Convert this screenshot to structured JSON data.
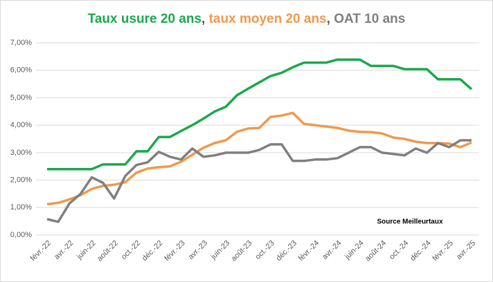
{
  "chart_data": {
    "type": "line",
    "series": [
      {
        "name": "Taux usure 20 ans",
        "color": "#1aa84b",
        "values": [
          2.4,
          2.4,
          2.4,
          2.4,
          2.4,
          2.57,
          2.57,
          2.57,
          3.05,
          3.05,
          3.57,
          3.57,
          3.79,
          4.0,
          4.24,
          4.5,
          4.67,
          5.09,
          5.33,
          5.56,
          5.79,
          5.91,
          6.11,
          6.28,
          6.28,
          6.28,
          6.39,
          6.39,
          6.39,
          6.16,
          6.16,
          6.16,
          6.04,
          6.04,
          6.04,
          5.67,
          5.67,
          5.67,
          5.31
        ]
      },
      {
        "name": "taux moyen 20 ans",
        "color": "#f0994a",
        "values": [
          1.12,
          1.17,
          1.3,
          1.45,
          1.68,
          1.79,
          1.83,
          1.92,
          2.27,
          2.42,
          2.47,
          2.5,
          2.67,
          2.92,
          3.18,
          3.35,
          3.45,
          3.76,
          3.88,
          3.9,
          4.3,
          4.35,
          4.45,
          4.05,
          4.0,
          3.95,
          3.9,
          3.8,
          3.76,
          3.75,
          3.7,
          3.55,
          3.5,
          3.4,
          3.35,
          3.35,
          3.33,
          3.2,
          3.37
        ]
      },
      {
        "name": "OAT 10 ans",
        "color": "#7f7f7f",
        "values": [
          0.58,
          0.48,
          1.15,
          1.5,
          2.1,
          1.9,
          1.33,
          2.15,
          2.55,
          2.65,
          3.03,
          2.85,
          2.75,
          3.15,
          2.85,
          2.9,
          3.0,
          3.0,
          3.0,
          3.1,
          3.3,
          3.3,
          2.7,
          2.7,
          2.75,
          2.75,
          2.8,
          3.0,
          3.2,
          3.2,
          3.0,
          2.95,
          2.9,
          3.15,
          3.0,
          3.35,
          3.2,
          3.45,
          3.45
        ]
      }
    ],
    "title_separator": ", ",
    "annotation": "Source Meilleurtaux",
    "categories": [
      "févr.-22",
      null,
      "avr.-22",
      null,
      "juin-22",
      null,
      "août-22",
      null,
      "oct.-22",
      null,
      "déc.-22",
      null,
      "févr.-23",
      null,
      "avr.-23",
      null,
      "juin-23",
      null,
      "août-23",
      null,
      "oct.-23",
      null,
      "déc.-23",
      null,
      "févr.-24",
      null,
      "avr.-24",
      null,
      "juin-24",
      null,
      "août-24",
      null,
      "oct.-24",
      null,
      "déc.-24",
      null,
      "févr.-25",
      null,
      "avr.-25"
    ],
    "ylim": [
      0,
      7
    ],
    "yticks": [
      {
        "value": 0,
        "label": "0,00%"
      },
      {
        "value": 1,
        "label": "1,00%"
      },
      {
        "value": 2,
        "label": "2,00%"
      },
      {
        "value": 3,
        "label": "3,00%"
      },
      {
        "value": 4,
        "label": "4,00%"
      },
      {
        "value": 5,
        "label": "5,00%"
      },
      {
        "value": 6,
        "label": "6,00%"
      },
      {
        "value": 7,
        "label": "7,00%"
      }
    ],
    "grid": true
  }
}
